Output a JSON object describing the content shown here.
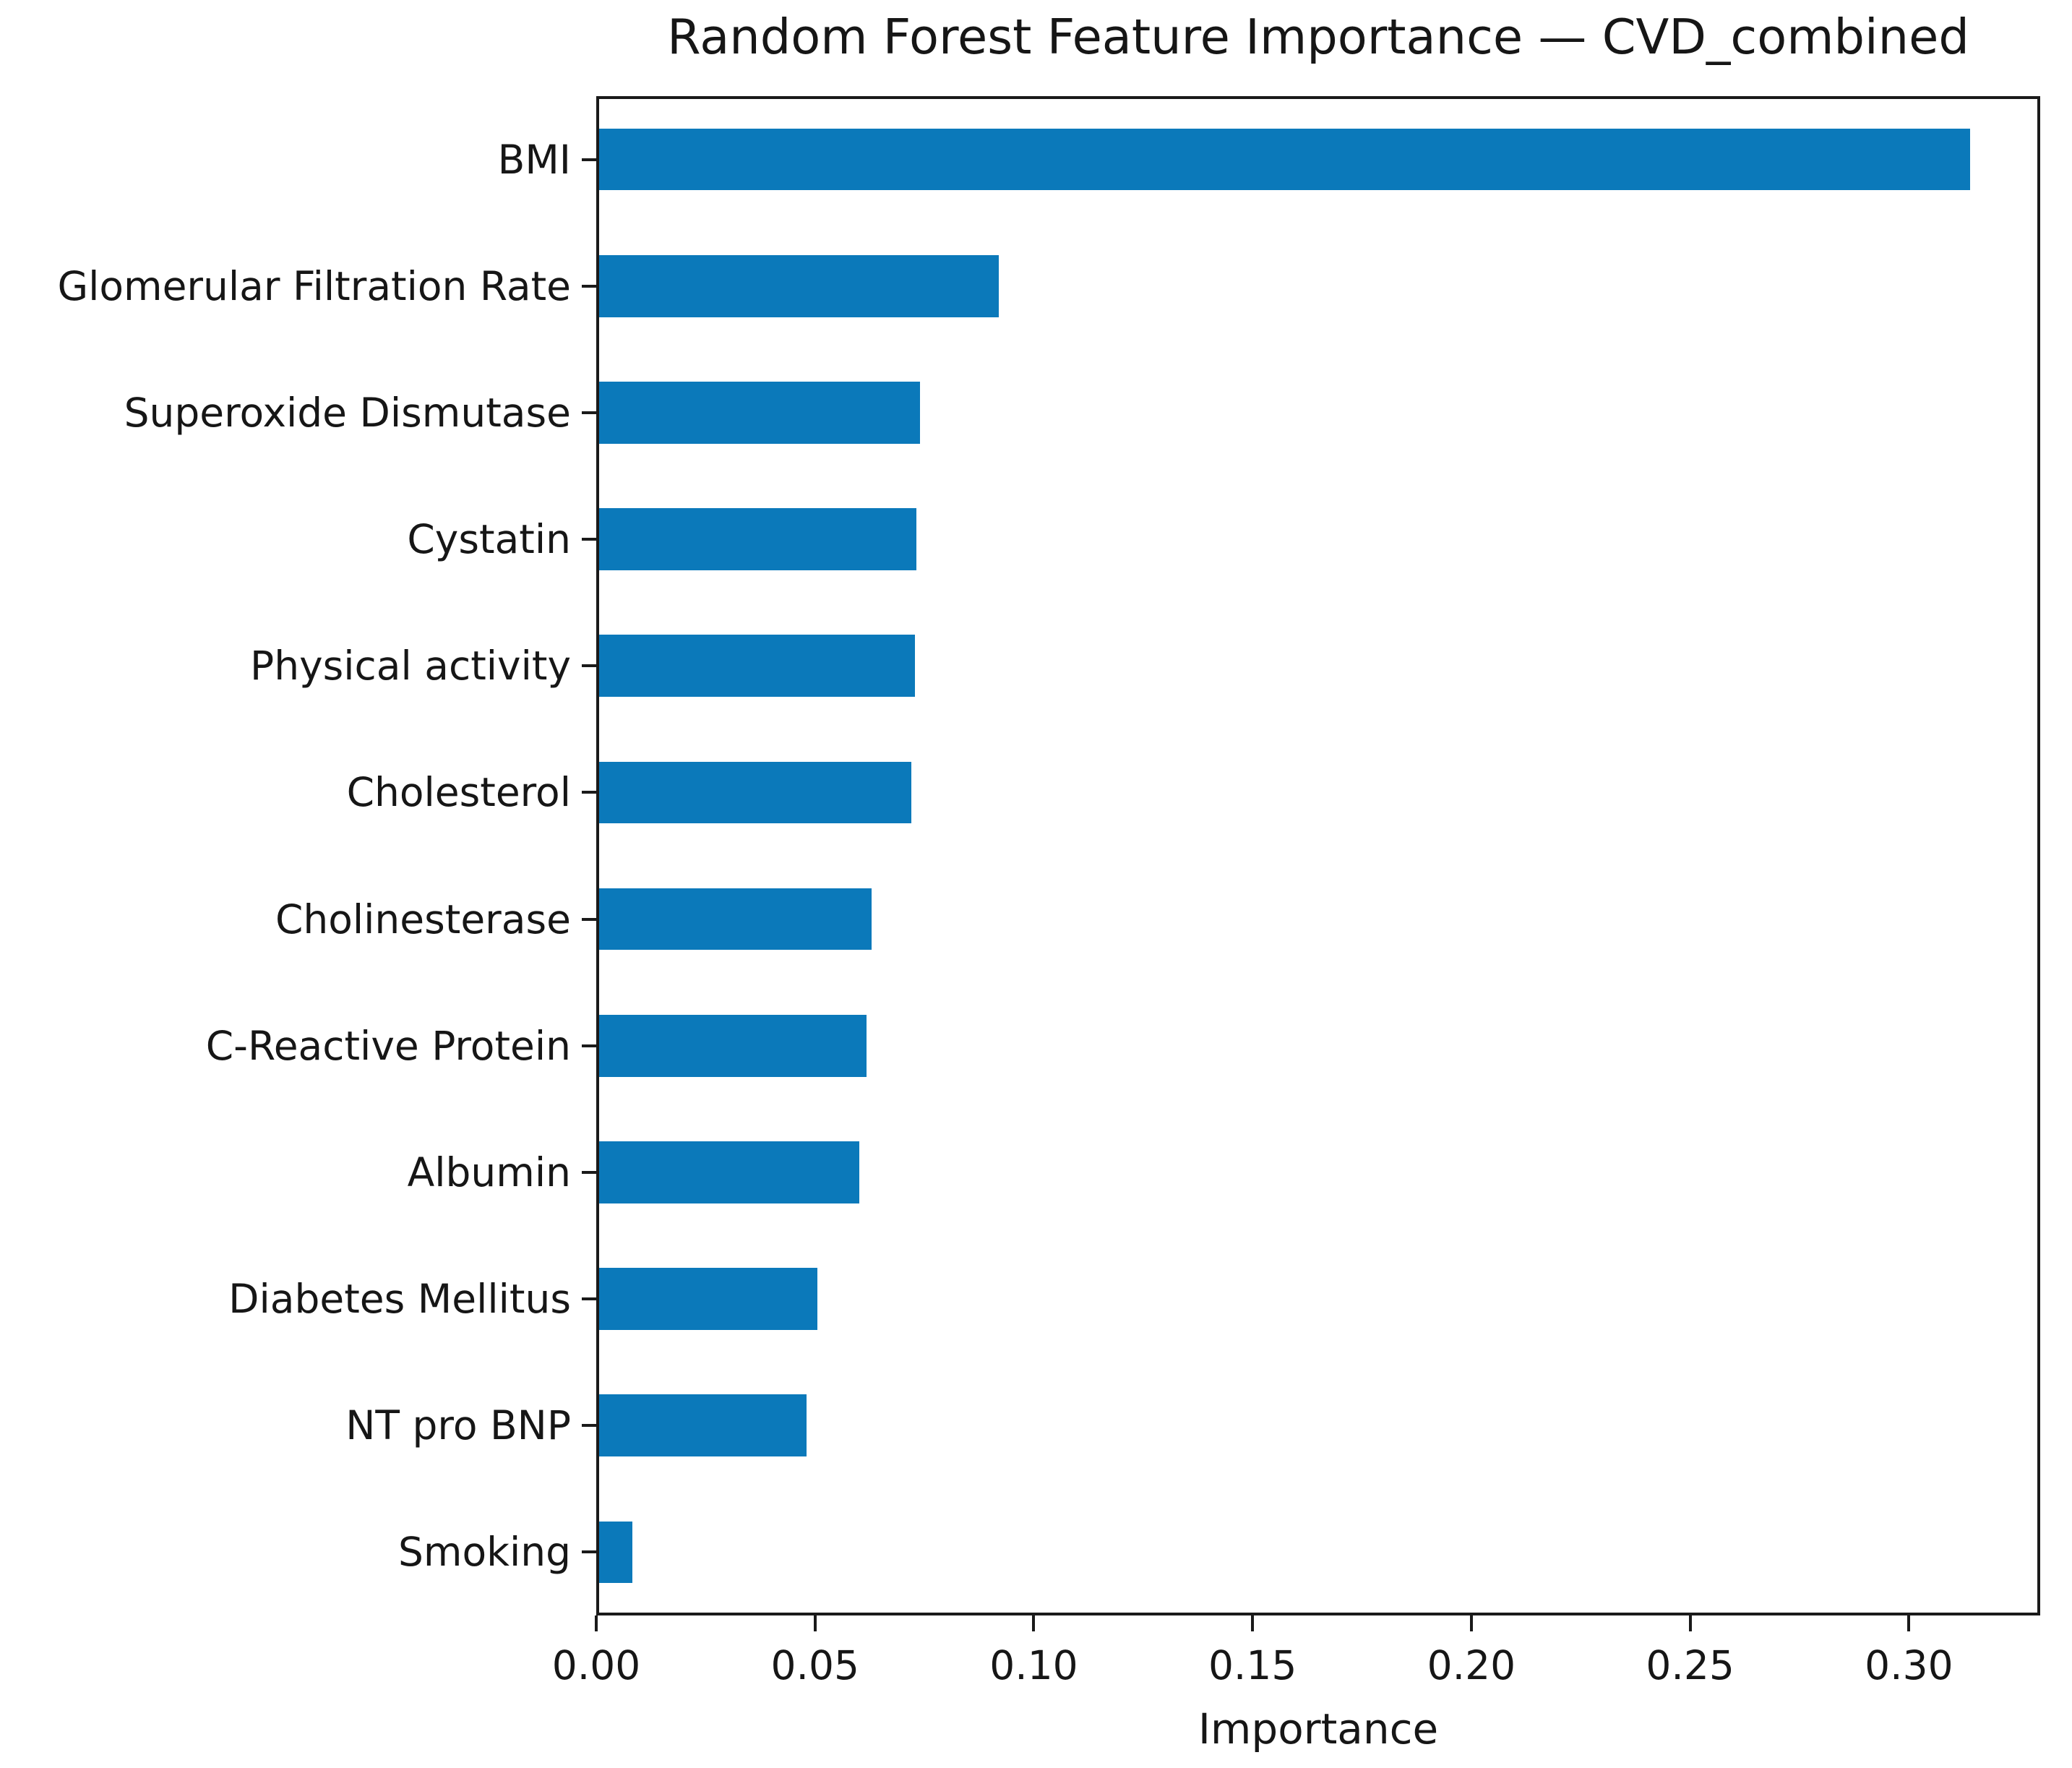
{
  "figure": {
    "background": "#ffffff"
  },
  "chart_data": {
    "type": "bar",
    "orientation": "horizontal",
    "title": "Random Forest Feature Importance — CVD_combined",
    "xlabel": "Importance",
    "ylabel": "",
    "categories": [
      "BMI",
      "Glomerular Filtration Rate",
      "Superoxide Dismutase",
      "Cystatin",
      "Physical activity",
      "Cholesterol",
      "Cholinesterase",
      "C-Reactive Protein",
      "Albumin",
      "Diabetes Mellitus",
      "NT pro BNP",
      "Smoking"
    ],
    "values": [
      0.314,
      0.092,
      0.074,
      0.0732,
      0.0728,
      0.072,
      0.063,
      0.0617,
      0.0601,
      0.0506,
      0.048,
      0.0083
    ],
    "x_ticks": [
      0.0,
      0.05,
      0.1,
      0.15,
      0.2,
      0.25,
      0.3
    ],
    "x_tick_labels": [
      "0.00",
      "0.05",
      "0.10",
      "0.15",
      "0.20",
      "0.25",
      "0.30"
    ],
    "xlim": [
      0,
      0.33
    ],
    "grid": false,
    "legend": null,
    "bar_color": "#0b79ba",
    "axis_color": "#1a1a1a",
    "bar_height_fraction": 0.49
  }
}
